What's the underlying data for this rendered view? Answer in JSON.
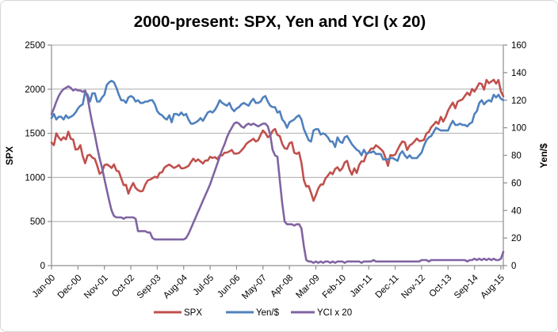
{
  "chart_data": {
    "type": "line",
    "title": "2000-present: SPX, Yen and YCI (x 20)",
    "x_frequency": "monthly",
    "x_range": "Jan-2000 to Sep-2015",
    "x_tick_labels": [
      "Jan-00",
      "Dec-00",
      "Nov-01",
      "Oct-02",
      "Sep-03",
      "Aug-04",
      "Jul-05",
      "Jun-06",
      "May-07",
      "Apr-08",
      "Mar-09",
      "Feb-10",
      "Jan-11",
      "Dec-11",
      "Nov-12",
      "Oct-13",
      "Sep-14",
      "Aug-15"
    ],
    "x_tick_indices": [
      0,
      11,
      22,
      33,
      44,
      55,
      66,
      77,
      88,
      99,
      110,
      121,
      132,
      143,
      154,
      165,
      176,
      187
    ],
    "y_left": {
      "label": "SPX",
      "min": 0,
      "max": 2500,
      "ticks": [
        0,
        500,
        1000,
        1500,
        2000,
        2500
      ]
    },
    "y_right": {
      "label": "Yen/$",
      "min": 0,
      "max": 160,
      "ticks": [
        0,
        20,
        40,
        60,
        80,
        100,
        120,
        140,
        160
      ]
    },
    "grid": "horizontal-only",
    "legend_position": "bottom",
    "colors": {
      "grid": "#ababab",
      "axis": "#8e8e8e"
    },
    "series": [
      {
        "name": "SPX",
        "color": "#C0504D",
        "axis": "left",
        "values": [
          1394,
          1366,
          1499,
          1452,
          1421,
          1455,
          1431,
          1518,
          1437,
          1429,
          1315,
          1320,
          1366,
          1240,
          1160,
          1249,
          1256,
          1224,
          1211,
          1134,
          1041,
          1060,
          1139,
          1148,
          1130,
          1107,
          1147,
          1077,
          1067,
          990,
          912,
          916,
          815,
          886,
          936,
          880,
          856,
          841,
          848,
          917,
          964,
          975,
          990,
          1008,
          996,
          1051,
          1058,
          1112,
          1131,
          1145,
          1126,
          1107,
          1121,
          1141,
          1102,
          1104,
          1115,
          1130,
          1174,
          1212,
          1181,
          1204,
          1181,
          1157,
          1192,
          1191,
          1234,
          1220,
          1229,
          1207,
          1249,
          1248,
          1280,
          1281,
          1295,
          1311,
          1270,
          1270,
          1277,
          1304,
          1336,
          1378,
          1401,
          1418,
          1438,
          1407,
          1421,
          1482,
          1531,
          1503,
          1455,
          1474,
          1527,
          1549,
          1481,
          1468,
          1379,
          1331,
          1323,
          1386,
          1400,
          1280,
          1267,
          1283,
          1166,
          969,
          896,
          903,
          826,
          735,
          798,
          873,
          919,
          919,
          987,
          1021,
          1057,
          1036,
          1096,
          1115,
          1074,
          1104,
          1169,
          1187,
          1089,
          1031,
          1102,
          1049,
          1141,
          1183,
          1181,
          1258,
          1286,
          1327,
          1326,
          1364,
          1345,
          1321,
          1292,
          1219,
          1131,
          1253,
          1247,
          1258,
          1312,
          1366,
          1408,
          1398,
          1310,
          1362,
          1379,
          1407,
          1441,
          1412,
          1416,
          1426,
          1498,
          1515,
          1569,
          1598,
          1631,
          1606,
          1686,
          1633,
          1682,
          1757,
          1806,
          1848,
          1783,
          1859,
          1872,
          1884,
          1924,
          1960,
          1931,
          2003,
          1972,
          2018,
          2068,
          2059,
          1995,
          2105,
          2068,
          2086,
          2107,
          2063,
          2104,
          1972,
          1920
        ]
      },
      {
        "name": "Yen/$",
        "color": "#4F81BD",
        "axis": "right",
        "values": [
          107,
          110,
          106,
          108,
          108,
          106,
          109,
          107,
          108,
          109,
          111,
          114,
          116,
          117,
          126,
          124,
          119,
          125,
          125,
          119,
          119,
          122,
          124,
          131,
          133,
          134,
          133,
          129,
          124,
          120,
          120,
          118,
          122,
          123,
          122,
          119,
          120,
          118,
          118,
          119,
          119,
          120,
          120,
          117,
          112,
          110,
          109,
          107,
          106,
          109,
          104,
          110,
          110,
          109,
          111,
          109,
          110,
          106,
          103,
          103,
          104,
          105,
          107,
          105,
          108,
          111,
          112,
          111,
          113,
          116,
          120,
          118,
          117,
          116,
          118,
          114,
          112,
          114,
          115,
          117,
          118,
          117,
          116,
          119,
          121,
          118,
          118,
          119,
          122,
          123,
          119,
          116,
          115,
          115,
          111,
          112,
          106,
          104,
          100,
          104,
          105,
          106,
          108,
          109,
          106,
          99,
          95,
          91,
          90,
          98,
          99,
          99,
          95,
          96,
          95,
          93,
          90,
          90,
          86,
          93,
          90,
          89,
          93,
          94,
          91,
          88,
          86,
          84,
          83,
          80,
          84,
          81,
          82,
          82,
          83,
          81,
          81,
          81,
          77,
          77,
          77,
          78,
          78,
          77,
          76,
          81,
          83,
          80,
          78,
          80,
          78,
          78,
          78,
          80,
          82,
          87,
          91,
          93,
          94,
          97,
          100,
          99,
          98,
          98,
          98,
          98,
          102,
          105,
          102,
          102,
          103,
          102,
          102,
          101,
          103,
          104,
          110,
          112,
          118,
          120,
          117,
          119,
          120,
          119,
          124,
          122,
          124,
          121,
          120
        ]
      },
      {
        "name": "YCI x 20",
        "color": "#8064A2",
        "axis": "right",
        "values": [
          110,
          114,
          119,
          123,
          126,
          128,
          129,
          130,
          129,
          127,
          128,
          127,
          127,
          126,
          127,
          122,
          112,
          103,
          95,
          86,
          78,
          71,
          63,
          55,
          47,
          40,
          36,
          35,
          35,
          35,
          34,
          35,
          35,
          35,
          35,
          34,
          25,
          25,
          25,
          25,
          24,
          24,
          20,
          19,
          19,
          19,
          19,
          19,
          19,
          19,
          19,
          19,
          19,
          19,
          19,
          19,
          20,
          23,
          27,
          31,
          35,
          39,
          43,
          47,
          51,
          55,
          59,
          64,
          69,
          74,
          79,
          84,
          88,
          93,
          97,
          100,
          103,
          104,
          103,
          101,
          100,
          102,
          103,
          102,
          103,
          102,
          101,
          102,
          103,
          103,
          101,
          95,
          84,
          80,
          79,
          62,
          45,
          32,
          30,
          30,
          30,
          29,
          30,
          30,
          27,
          14,
          4,
          3,
          3,
          2,
          3,
          2,
          3,
          2,
          3,
          3,
          2,
          3,
          2,
          3,
          3,
          3,
          2,
          3,
          3,
          3,
          3,
          3,
          3,
          2,
          3,
          3,
          3,
          3,
          4,
          3,
          3,
          3,
          3,
          3,
          3,
          3,
          3,
          3,
          3,
          3,
          3,
          3,
          3,
          3,
          3,
          3,
          3,
          3,
          4,
          4,
          4,
          3,
          4,
          4,
          4,
          4,
          4,
          4,
          4,
          4,
          4,
          4,
          4,
          4,
          4,
          4,
          4,
          3,
          4,
          4,
          5,
          4,
          5,
          4,
          5,
          4,
          5,
          4,
          5,
          4,
          4,
          5,
          10
        ]
      }
    ]
  }
}
